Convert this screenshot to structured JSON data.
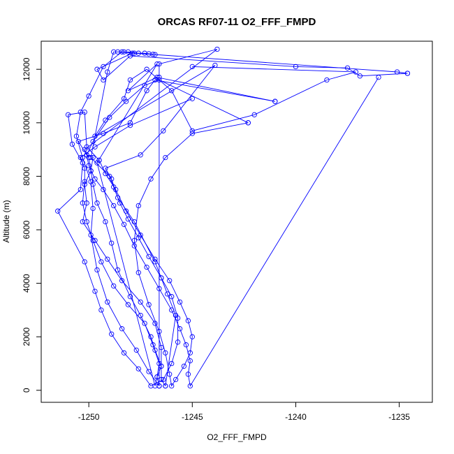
{
  "chart_data": {
    "type": "scatter",
    "title": "ORCAS RF07-11 O2_FFF_FMPD",
    "xlabel": "O2_FFF_FMPD",
    "ylabel": "Altitude (m)",
    "xlim": [
      -1252.3,
      -1233.4
    ],
    "ylim": [
      -450,
      13050
    ],
    "x_ticks": [
      -1250,
      -1245,
      -1240,
      -1235
    ],
    "x_tick_labels": [
      "-1250",
      "-1245",
      "-1240",
      "-1235"
    ],
    "y_ticks": [
      0,
      2000,
      4000,
      6000,
      8000,
      10000,
      12000
    ],
    "y_tick_labels": [
      "0",
      "2000",
      "4000",
      "6000",
      "8000",
      "10000",
      "12000"
    ],
    "grid": false,
    "legend": "none",
    "color": "#0000ff",
    "marker": "open-circle",
    "connect_points": true,
    "series": [
      {
        "points": [
          [
            -1246.6,
            160
          ],
          [
            -1246.7,
            500
          ],
          [
            -1246.5,
            900
          ],
          [
            -1246.8,
            1500
          ],
          [
            -1247.0,
            2000
          ],
          [
            -1247.5,
            2800
          ],
          [
            -1248.0,
            3500
          ],
          [
            -1248.6,
            4500
          ],
          [
            -1248.9,
            5500
          ],
          [
            -1249.2,
            6300
          ],
          [
            -1249.6,
            7000
          ],
          [
            -1249.8,
            7700
          ],
          [
            -1249.9,
            8200
          ],
          [
            -1249.8,
            8700
          ],
          [
            -1250.1,
            8800
          ],
          [
            -1250.5,
            9300
          ],
          [
            -1249.3,
            9600
          ],
          [
            -1248.0,
            10000
          ],
          [
            -1247.2,
            11200
          ],
          [
            -1246.8,
            11600
          ],
          [
            -1241.0,
            10800
          ]
        ]
      },
      {
        "points": [
          [
            -1241.0,
            10800
          ],
          [
            -1246.7,
            11700
          ],
          [
            -1248.1,
            11200
          ],
          [
            -1246.7,
            12200
          ],
          [
            -1249.6,
            8500
          ],
          [
            -1246.8,
            160
          ],
          [
            -1246.7,
            500
          ],
          [
            -1246.6,
            1000
          ],
          [
            -1246.9,
            1700
          ],
          [
            -1247.3,
            2500
          ],
          [
            -1248.1,
            3200
          ],
          [
            -1248.8,
            3900
          ],
          [
            -1249.4,
            4800
          ],
          [
            -1249.8,
            5600
          ],
          [
            -1250.1,
            6300
          ],
          [
            -1250.3,
            7000
          ],
          [
            -1250.2,
            7800
          ],
          [
            -1250.2,
            8300
          ],
          [
            -1250.4,
            8700
          ],
          [
            -1249.7,
            9100
          ],
          [
            -1248.0,
            9900
          ],
          [
            -1245.0,
            10900
          ]
        ]
      },
      {
        "points": [
          [
            -1246.6,
            160
          ],
          [
            -1246.6,
            11700
          ],
          [
            -1246.6,
            12200
          ],
          [
            -1243.8,
            12750
          ],
          [
            -1250.2,
            9000
          ],
          [
            -1250.0,
            8700
          ],
          [
            -1249.9,
            8200
          ],
          [
            -1250.2,
            7700
          ],
          [
            -1250.1,
            7000
          ],
          [
            -1250.3,
            6300
          ],
          [
            -1249.7,
            5600
          ],
          [
            -1249.1,
            4900
          ],
          [
            -1248.4,
            4100
          ],
          [
            -1247.5,
            3300
          ],
          [
            -1246.8,
            2500
          ],
          [
            -1246.5,
            1600
          ],
          [
            -1246.5,
            900
          ],
          [
            -1246.5,
            400
          ],
          [
            -1246.3,
            160
          ]
        ]
      },
      {
        "points": [
          [
            -1246.3,
            160
          ],
          [
            -1245.8,
            2800
          ],
          [
            -1246.2,
            3600
          ],
          [
            -1246.8,
            4800
          ],
          [
            -1247.8,
            6300
          ],
          [
            -1248.6,
            7200
          ],
          [
            -1248.9,
            7900
          ],
          [
            -1249.2,
            8300
          ],
          [
            -1247.5,
            8800
          ],
          [
            -1246.4,
            9700
          ],
          [
            -1243.9,
            12150
          ],
          [
            -1249.7,
            9500
          ],
          [
            -1249.2,
            10100
          ],
          [
            -1248.3,
            10900
          ],
          [
            -1248.0,
            11600
          ],
          [
            -1247.2,
            12000
          ],
          [
            -1246.0,
            11200
          ],
          [
            -1245.0,
            9700
          ],
          [
            -1242.0,
            10300
          ],
          [
            -1238.5,
            11600
          ],
          [
            -1237.1,
            11900
          ],
          [
            -1245.0,
            12100
          ]
        ]
      },
      {
        "points": [
          [
            -1236.0,
            11700
          ],
          [
            -1245.1,
            160
          ],
          [
            -1245.2,
            600
          ],
          [
            -1245.1,
            1100
          ],
          [
            -1245.3,
            1700
          ],
          [
            -1245.6,
            2300
          ],
          [
            -1246.0,
            3000
          ],
          [
            -1246.6,
            3800
          ],
          [
            -1247.2,
            4600
          ],
          [
            -1247.8,
            5400
          ],
          [
            -1248.3,
            6200
          ],
          [
            -1248.8,
            6900
          ],
          [
            -1249.3,
            7500
          ],
          [
            -1249.7,
            7900
          ],
          [
            -1250.0,
            8400
          ],
          [
            -1250.1,
            8800
          ],
          [
            -1249.8,
            9300
          ],
          [
            -1249.0,
            10200
          ],
          [
            -1248.2,
            10800
          ],
          [
            -1247.3,
            11400
          ],
          [
            -1246.6,
            11600
          ],
          [
            -1242.3,
            10000
          ]
        ]
      },
      {
        "points": [
          [
            -1242.3,
            10000
          ],
          [
            -1245.0,
            9600
          ],
          [
            -1246.3,
            8700
          ],
          [
            -1247.0,
            7900
          ],
          [
            -1247.6,
            6900
          ],
          [
            -1247.8,
            5600
          ],
          [
            -1247.6,
            4400
          ],
          [
            -1247.1,
            3200
          ],
          [
            -1246.6,
            2200
          ],
          [
            -1246.3,
            1400
          ],
          [
            -1246.1,
            600
          ],
          [
            -1246.0,
            160
          ],
          [
            -1245.8,
            400
          ],
          [
            -1245.4,
            900
          ],
          [
            -1245.1,
            1400
          ],
          [
            -1245.0,
            2000
          ],
          [
            -1245.2,
            2600
          ],
          [
            -1245.6,
            3300
          ],
          [
            -1246.1,
            4100
          ],
          [
            -1246.8,
            4900
          ],
          [
            -1247.5,
            5800
          ],
          [
            -1248.2,
            6700
          ],
          [
            -1248.7,
            7500
          ],
          [
            -1249.2,
            8100
          ],
          [
            -1249.5,
            8600
          ]
        ]
      },
      {
        "points": [
          [
            -1249.5,
            8600
          ],
          [
            -1250.1,
            9100
          ],
          [
            -1250.2,
            10400
          ],
          [
            -1251.0,
            10300
          ],
          [
            -1250.8,
            9200
          ],
          [
            -1250.3,
            8500
          ],
          [
            -1250.4,
            7500
          ],
          [
            -1251.5,
            6700
          ],
          [
            -1250.2,
            4800
          ],
          [
            -1249.7,
            3700
          ],
          [
            -1249.4,
            3000
          ],
          [
            -1248.9,
            2100
          ],
          [
            -1248.3,
            1400
          ],
          [
            -1247.6,
            800
          ],
          [
            -1247.0,
            160
          ],
          [
            -1246.4,
            400
          ],
          [
            -1246.0,
            1000
          ],
          [
            -1245.7,
            1800
          ],
          [
            -1245.7,
            2700
          ],
          [
            -1246.0,
            3500
          ],
          [
            -1246.5,
            4200
          ]
        ]
      },
      {
        "points": [
          [
            -1246.5,
            4200
          ],
          [
            -1247.1,
            5000
          ],
          [
            -1247.6,
            5700
          ],
          [
            -1248.1,
            6400
          ],
          [
            -1248.5,
            7000
          ],
          [
            -1248.8,
            7600
          ],
          [
            -1249.0,
            8000
          ],
          [
            -1249.9,
            8700
          ],
          [
            -1249.1,
            11900
          ],
          [
            -1248.8,
            12650
          ],
          [
            -1248.3,
            12650
          ],
          [
            -1247.8,
            12600
          ],
          [
            -1247.3,
            12600
          ],
          [
            -1246.8,
            12550
          ],
          [
            -1247.9,
            12600
          ],
          [
            -1249.6,
            12000
          ],
          [
            -1249.3,
            11600
          ],
          [
            -1248.0,
            12500
          ],
          [
            -1240.0,
            12100
          ],
          [
            -1237.5,
            12050
          ],
          [
            -1236.9,
            11750
          ],
          [
            -1234.6,
            11850
          ]
        ]
      },
      {
        "points": [
          [
            -1234.6,
            11850
          ],
          [
            -1235.1,
            11900
          ],
          [
            -1248.6,
            12650
          ],
          [
            -1248.1,
            12650
          ],
          [
            -1247.6,
            12600
          ],
          [
            -1247.1,
            12580
          ],
          [
            -1246.9,
            12560
          ],
          [
            -1248.4,
            12650
          ],
          [
            -1249.3,
            12100
          ],
          [
            -1250.0,
            11000
          ],
          [
            -1250.4,
            10400
          ],
          [
            -1250.6,
            9500
          ],
          [
            -1250.3,
            8700
          ],
          [
            -1249.9,
            7800
          ],
          [
            -1249.8,
            6800
          ],
          [
            -1249.9,
            5800
          ],
          [
            -1249.6,
            4500
          ],
          [
            -1249.1,
            3300
          ],
          [
            -1248.4,
            2300
          ],
          [
            -1247.7,
            1500
          ],
          [
            -1247.1,
            700
          ],
          [
            -1246.6,
            160
          ]
        ]
      }
    ]
  }
}
